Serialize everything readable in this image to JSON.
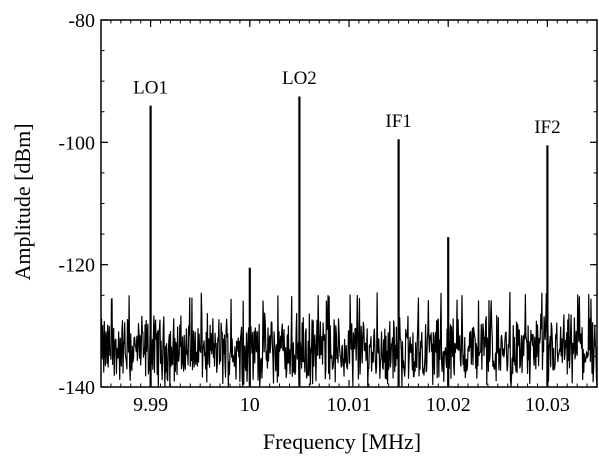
{
  "chart_data": {
    "type": "line",
    "title": "",
    "xlabel": "Frequency [MHz]",
    "ylabel": "Amplitude [dBm]",
    "xlim": [
      9.985,
      10.035
    ],
    "ylim": [
      -140,
      -80
    ],
    "xticks": [
      9.99,
      10.0,
      10.01,
      10.02,
      10.03
    ],
    "xtick_labels": [
      "9.99",
      "10",
      "10.01",
      "10.02",
      "10.03"
    ],
    "yticks": [
      -140,
      -120,
      -100,
      -80
    ],
    "ytick_labels": [
      "-140",
      "-120",
      "-100",
      "-80"
    ],
    "grid": false,
    "line_color": "#000000",
    "noise_floor": {
      "mean": -134,
      "min": -140,
      "max": -126
    },
    "peaks": [
      {
        "x": 9.99,
        "y": -94
      },
      {
        "x": 10.0,
        "y": -120.5
      },
      {
        "x": 10.005,
        "y": -92.5
      },
      {
        "x": 10.015,
        "y": -99.5
      },
      {
        "x": 10.02,
        "y": -115.5
      },
      {
        "x": 10.03,
        "y": -100.5
      }
    ],
    "annotations": [
      {
        "text": "LO1",
        "x": 9.99,
        "y": -92
      },
      {
        "text": "LO2",
        "x": 10.005,
        "y": -90.5
      },
      {
        "text": "IF1",
        "x": 10.015,
        "y": -97.5
      },
      {
        "text": "IF2",
        "x": 10.03,
        "y": -98.5
      }
    ]
  }
}
